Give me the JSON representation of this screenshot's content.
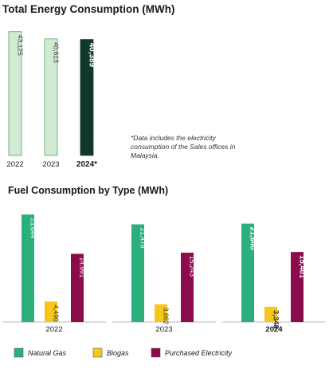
{
  "chart_data": [
    {
      "type": "bar",
      "title": "Total Energy Consumption (MWh)",
      "categories": [
        "2022",
        "2023",
        "2024*"
      ],
      "values": [
        43125,
        40613,
        40389
      ],
      "value_labels": [
        "43,125",
        "40,613",
        "40,389"
      ],
      "highlight_category": "2024*",
      "ylim": [
        0,
        50000
      ],
      "grid": false,
      "legend": "none",
      "colors": {
        "normal": "#d3ead2",
        "normal_border": "#4fa36a",
        "highlight": "#10392c"
      },
      "footnote": "*Data includes the electricity consumption of the Sales offices in Malaysia."
    },
    {
      "type": "bar",
      "title": "Fuel Consumption by Type (MWh)",
      "categories": [
        "2022",
        "2023",
        "2024"
      ],
      "highlight_category": "2024",
      "series": [
        {
          "name": "Natural Gas",
          "values": [
            23644,
            21478,
            21640
          ],
          "value_labels": [
            "23,644",
            "21,478",
            "21,640"
          ],
          "color": "#2bb07b"
        },
        {
          "name": "Biogas",
          "values": [
            4490,
            3892,
            3348
          ],
          "value_labels": [
            "4,490",
            "3,892",
            "3,348"
          ],
          "color": "#f6c61b"
        },
        {
          "name": "Purchased Electricity",
          "values": [
            14991,
            15243,
            15401
          ],
          "value_labels": [
            "14,991",
            "15,243",
            "15,401"
          ],
          "color": "#8c0b4c"
        }
      ],
      "ylim": [
        0,
        27000
      ],
      "grid": false,
      "legend": "bottom-left"
    }
  ]
}
